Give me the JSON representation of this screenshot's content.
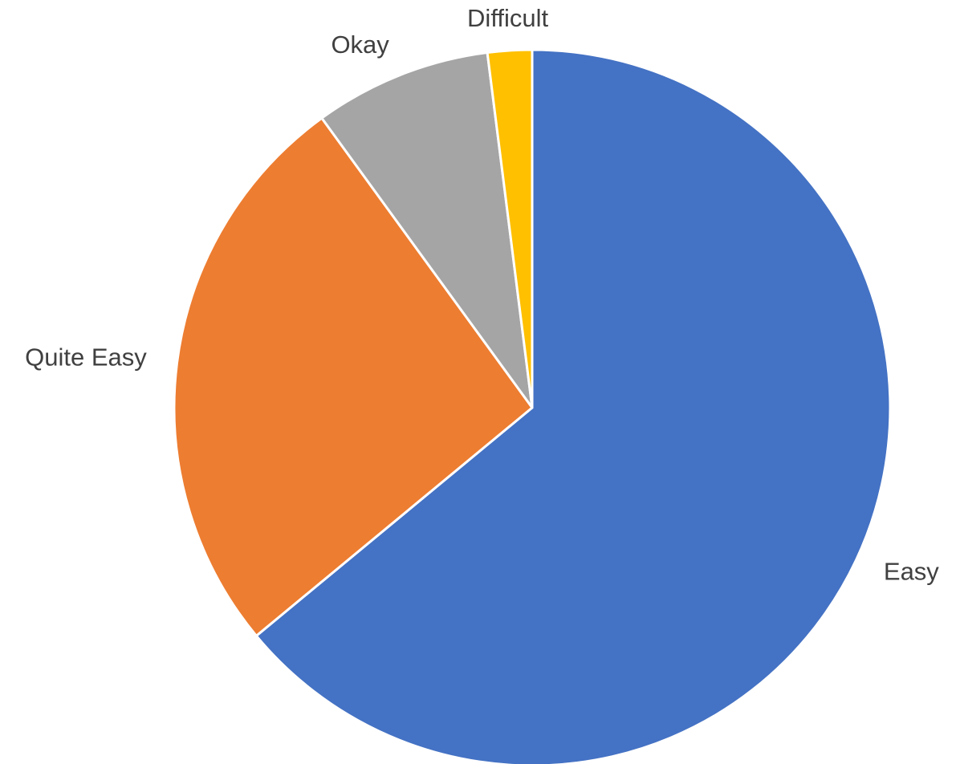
{
  "chart_data": {
    "type": "pie",
    "title": "",
    "start_angle_deg": 0,
    "direction": "clockwise",
    "slices": [
      {
        "label": "Easy",
        "value": 64,
        "color": "#4472C4"
      },
      {
        "label": "Quite Easy",
        "value": 26,
        "color": "#ED7D31"
      },
      {
        "label": "Okay",
        "value": 8,
        "color": "#A5A5A5"
      },
      {
        "label": "Difficult",
        "value": 2,
        "color": "#FFC000"
      }
    ]
  }
}
